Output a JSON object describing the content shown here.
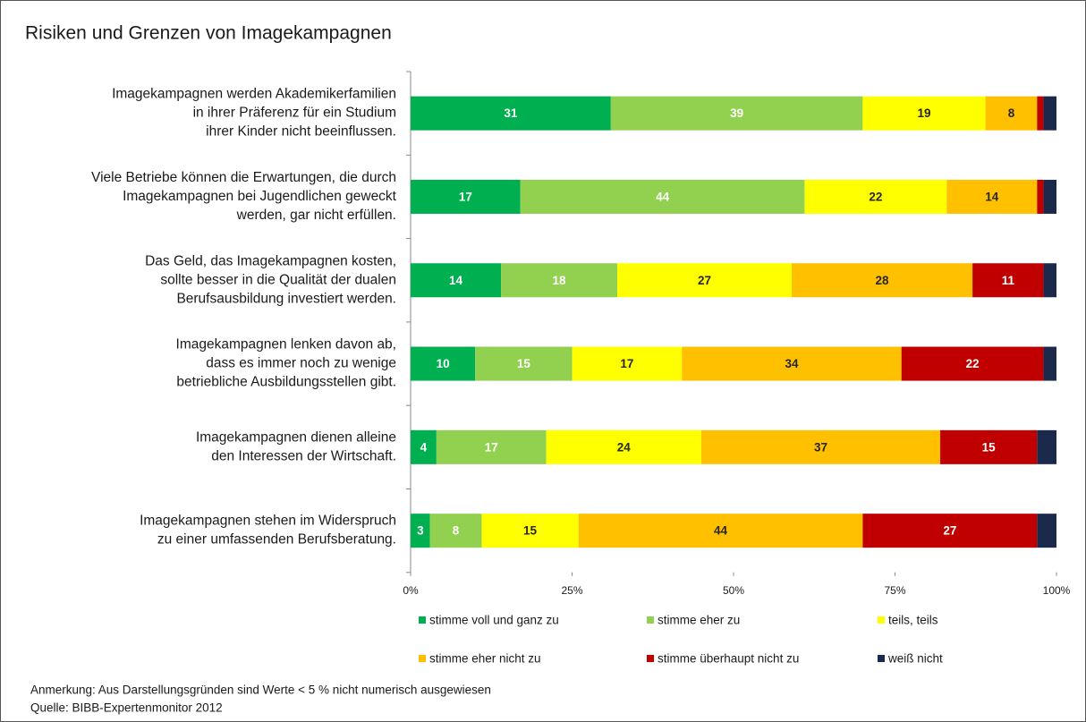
{
  "chart_data": {
    "type": "stacked_bar_horizontal_percent",
    "title": "Risiken und Grenzen von Imagekampagnen",
    "categories": [
      [
        "Imagekampagnen werden Akademikerfamilien",
        "in ihrer Präferenz für ein Studium",
        "ihrer Kinder nicht beeinflussen."
      ],
      [
        "Viele Betriebe können die Erwartungen, die durch",
        "Imagekampagnen bei Jugendlichen geweckt",
        "werden, gar nicht erfüllen."
      ],
      [
        "Das Geld, das Imagekampagnen kosten,",
        "sollte besser in die Qualität der dualen",
        "Berufsausbildung investiert werden."
      ],
      [
        "Imagekampagnen lenken davon ab,",
        "dass es immer noch zu wenige",
        "betriebliche Ausbildungsstellen gibt."
      ],
      [
        "Imagekampagnen dienen alleine",
        "den Interessen der Wirtschaft."
      ],
      [
        "Imagekampagnen stehen im Widerspruch",
        "zu einer umfassenden Berufsberatung."
      ]
    ],
    "series": [
      {
        "name": "stimme voll und ganz zu",
        "color": "#00b050",
        "label_color": "#ffffff",
        "values": [
          31,
          17,
          14,
          10,
          4,
          3
        ]
      },
      {
        "name": "stimme eher zu",
        "color": "#92d050",
        "label_color": "#ffffff",
        "values": [
          39,
          44,
          18,
          15,
          17,
          8
        ]
      },
      {
        "name": "teils, teils",
        "color": "#ffff00",
        "label_color": "#262626",
        "values": [
          19,
          22,
          27,
          17,
          24,
          15
        ]
      },
      {
        "name": "stimme eher nicht zu",
        "color": "#ffc000",
        "label_color": "#262626",
        "values": [
          8,
          14,
          28,
          34,
          37,
          44
        ]
      },
      {
        "name": "stimme überhaupt nicht zu",
        "color": "#c00000",
        "label_color": "#ffffff",
        "values": [
          1,
          1,
          11,
          22,
          15,
          27
        ],
        "value_labels": [
          null,
          null,
          "11",
          "22",
          "15",
          "27"
        ]
      },
      {
        "name": "weiß nicht",
        "color": "#1b2a4a",
        "label_color": "#ffffff",
        "values": [
          2,
          2,
          2,
          2,
          3,
          3
        ],
        "value_labels": [
          null,
          null,
          null,
          null,
          null,
          null
        ]
      }
    ],
    "xlim": [
      0,
      100
    ],
    "xticks": [
      {
        "value": 0,
        "label": "0%"
      },
      {
        "value": 25,
        "label": "25%"
      },
      {
        "value": 50,
        "label": "50%"
      },
      {
        "value": 75,
        "label": "75%"
      },
      {
        "value": 100,
        "label": "100%"
      }
    ],
    "notes": [
      "Anmerkung: Aus Darstellungsgründen sind Werte < 5 % nicht numerisch ausgewiesen",
      "Quelle: BIBB-Expertenmonitor 2012"
    ]
  }
}
